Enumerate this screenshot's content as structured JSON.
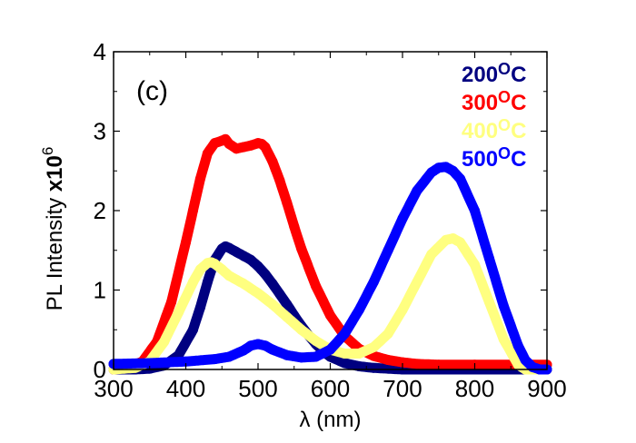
{
  "chart_data": {
    "type": "scatter",
    "title": "",
    "panel_label": "(c)",
    "xlabel": "λ (nm)",
    "ylabel": {
      "text": "PL Intensity ",
      "multiplier": "x10",
      "exponent": "6"
    },
    "xlim": [
      300,
      900
    ],
    "ylim": [
      0,
      4
    ],
    "xticks": [
      300,
      400,
      500,
      600,
      700,
      800,
      900
    ],
    "yticks": [
      0,
      1,
      2,
      3,
      4
    ],
    "grid": false,
    "legend_position": "top-right",
    "series": [
      {
        "name": "200°C",
        "label_num": "200",
        "label_sup": "o",
        "label_unit": "C",
        "color": "#000080",
        "x": [
          300,
          330,
          350,
          370,
          390,
          410,
          420,
          430,
          440,
          450,
          455,
          460,
          470,
          480,
          490,
          500,
          510,
          520,
          530,
          540,
          550,
          560,
          570,
          580,
          590,
          600,
          620,
          640,
          660,
          680,
          700,
          750,
          800,
          850,
          900
        ],
        "y": [
          0.0,
          0.0,
          0.01,
          0.05,
          0.18,
          0.5,
          0.78,
          1.1,
          1.38,
          1.52,
          1.55,
          1.53,
          1.48,
          1.43,
          1.38,
          1.3,
          1.2,
          1.08,
          0.95,
          0.82,
          0.68,
          0.55,
          0.43,
          0.32,
          0.23,
          0.16,
          0.08,
          0.04,
          0.02,
          0.01,
          0.0,
          0.0,
          0.0,
          0.0,
          0.0
        ]
      },
      {
        "name": "300°C",
        "label_num": "300",
        "label_sup": "o",
        "label_unit": "C",
        "color": "#FF0000",
        "x": [
          300,
          320,
          340,
          360,
          380,
          400,
          410,
          420,
          430,
          440,
          450,
          455,
          460,
          470,
          480,
          490,
          500,
          505,
          510,
          520,
          530,
          540,
          550,
          560,
          580,
          600,
          620,
          640,
          660,
          680,
          700,
          720,
          750,
          800,
          850,
          900
        ],
        "y": [
          0.0,
          0.02,
          0.1,
          0.35,
          0.85,
          1.6,
          2.0,
          2.4,
          2.72,
          2.85,
          2.88,
          2.9,
          2.84,
          2.78,
          2.8,
          2.82,
          2.85,
          2.84,
          2.8,
          2.62,
          2.38,
          2.1,
          1.8,
          1.52,
          1.05,
          0.68,
          0.42,
          0.26,
          0.17,
          0.12,
          0.09,
          0.07,
          0.06,
          0.06,
          0.06,
          0.06
        ]
      },
      {
        "name": "400°C",
        "label_num": "400",
        "label_sup": "o",
        "label_unit": "C",
        "color": "#FFFF80",
        "x": [
          300,
          330,
          350,
          370,
          390,
          410,
          420,
          430,
          435,
          440,
          450,
          460,
          480,
          500,
          520,
          540,
          560,
          580,
          600,
          620,
          640,
          660,
          680,
          700,
          720,
          740,
          760,
          770,
          780,
          800,
          820,
          840,
          860,
          870,
          880,
          900
        ],
        "y": [
          0.0,
          0.02,
          0.1,
          0.35,
          0.72,
          1.1,
          1.26,
          1.34,
          1.35,
          1.33,
          1.26,
          1.18,
          1.08,
          0.96,
          0.82,
          0.66,
          0.5,
          0.36,
          0.25,
          0.2,
          0.2,
          0.28,
          0.45,
          0.75,
          1.1,
          1.45,
          1.63,
          1.65,
          1.6,
          1.32,
          0.85,
          0.38,
          0.06,
          0.0,
          0.0,
          0.0
        ]
      },
      {
        "name": "500°C",
        "label_num": "500",
        "label_sup": "o",
        "label_unit": "C",
        "color": "#0000FF",
        "x": [
          300,
          350,
          400,
          440,
          460,
          480,
          490,
          500,
          510,
          520,
          540,
          560,
          580,
          600,
          620,
          640,
          660,
          680,
          700,
          720,
          740,
          750,
          760,
          770,
          780,
          800,
          820,
          840,
          860,
          870,
          880,
          890,
          900
        ],
        "y": [
          0.07,
          0.08,
          0.1,
          0.13,
          0.16,
          0.24,
          0.3,
          0.32,
          0.3,
          0.25,
          0.18,
          0.15,
          0.16,
          0.25,
          0.45,
          0.75,
          1.1,
          1.5,
          1.9,
          2.25,
          2.48,
          2.54,
          2.55,
          2.5,
          2.4,
          2.0,
          1.4,
          0.8,
          0.3,
          0.12,
          0.03,
          0.0,
          0.0
        ]
      }
    ]
  }
}
